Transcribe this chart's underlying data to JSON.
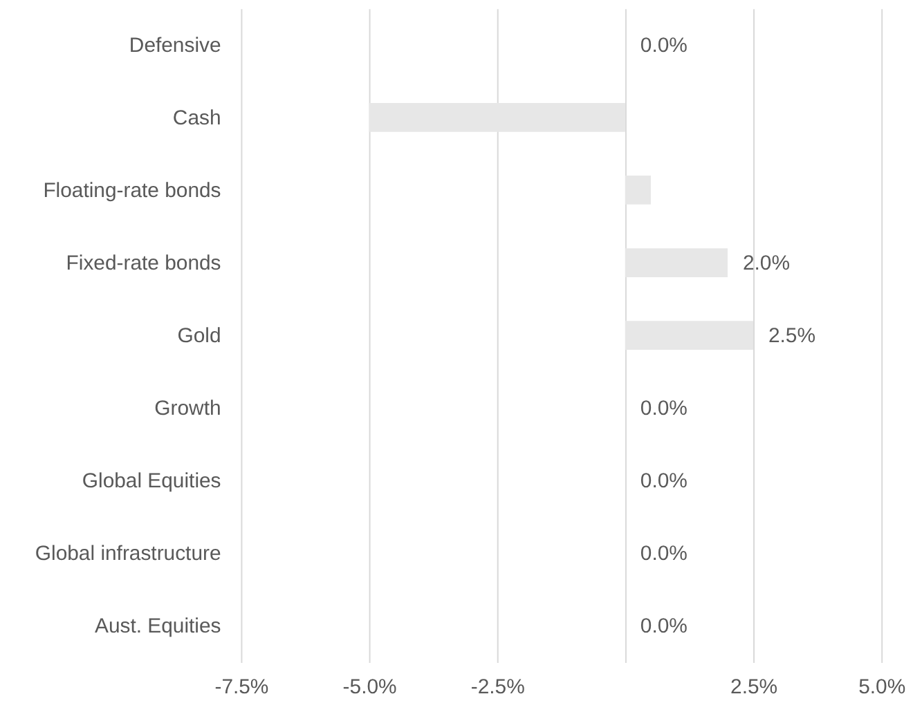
{
  "chart_data": {
    "type": "bar",
    "orientation": "horizontal",
    "categories": [
      "Defensive",
      "Cash",
      "Floating-rate bonds",
      "Fixed-rate bonds",
      "Gold",
      "Growth",
      "Global Equities",
      "Global infrastructure",
      "Aust. Equities"
    ],
    "values": [
      0.0,
      -5.0,
      0.5,
      2.0,
      2.5,
      0.0,
      0.0,
      0.0,
      0.0
    ],
    "value_labels": [
      "0.0%",
      null,
      null,
      "2.0%",
      "2.5%",
      "0.0%",
      "0.0%",
      "0.0%",
      "0.0%"
    ],
    "color": "#e7e7e7",
    "xlim": [
      -7.5,
      5.0
    ],
    "xticks": [
      {
        "value": -7.5,
        "label": "-7.5%"
      },
      {
        "value": -5.0,
        "label": "-5.0%"
      },
      {
        "value": -2.5,
        "label": "-2.5%"
      },
      {
        "value": 0,
        "label": null
      },
      {
        "value": 2.5,
        "label": "2.5%"
      },
      {
        "value": 5.0,
        "label": "5.0%"
      }
    ],
    "grid": "x"
  }
}
